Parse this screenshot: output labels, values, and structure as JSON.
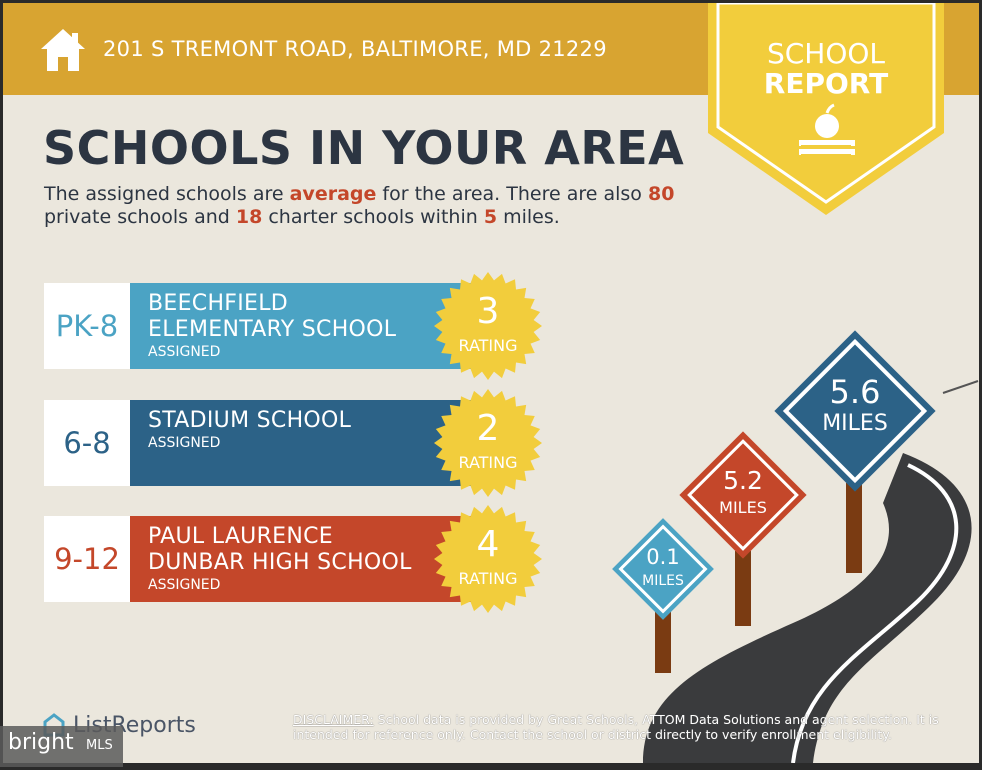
{
  "header": {
    "address": "201 S TREMONT ROAD, BALTIMORE, MD 21229"
  },
  "badge": {
    "line1": "SCHOOL",
    "line2": "REPORT"
  },
  "title": "SCHOOLS IN YOUR AREA",
  "summary": {
    "p1": "The assigned schools are ",
    "quality": "average",
    "p2": " for the area. There are also ",
    "private_count": "80",
    "p3": " private schools and ",
    "charter_count": "18",
    "p4": " charter schools within ",
    "radius": "5",
    "p5": " miles."
  },
  "schools": [
    {
      "grades": "PK-8",
      "name_line1": "BEECHFIELD",
      "name_line2": "ELEMENTARY SCHOOL",
      "status": "ASSIGNED",
      "rating": "3",
      "rating_label": "RATING",
      "color": "#4ba3c4"
    },
    {
      "grades": "6-8",
      "name_line1": "STADIUM SCHOOL",
      "name_line2": "",
      "status": "ASSIGNED",
      "rating": "2",
      "rating_label": "RATING",
      "color": "#2c6287"
    },
    {
      "grades": "9-12",
      "name_line1": "PAUL LAURENCE",
      "name_line2": "DUNBAR HIGH SCHOOL",
      "status": "ASSIGNED",
      "rating": "4",
      "rating_label": "RATING",
      "color": "#c4472a"
    }
  ],
  "distance_signs": [
    {
      "value": "0.1",
      "unit": "MILES",
      "color": "#4ba3c4"
    },
    {
      "value": "5.2",
      "unit": "MILES",
      "color": "#c4472a"
    },
    {
      "value": "5.6",
      "unit": "MILES",
      "color": "#2c6287"
    }
  ],
  "brand": {
    "listreports": "ListReports",
    "bright": "bright",
    "mls": "MLS"
  },
  "disclaimer": {
    "label": "DISCLAIMER:",
    "text": " School data is provided by Great Schools, ATTOM Data Solutions and agent selection. It is intended for reference only. Contact the school or district directly to verify enrollment eligibility."
  },
  "colors": {
    "header": "#d8a431",
    "badge": "#f2cd3c",
    "title": "#2c3542",
    "highlight": "#c4472a",
    "background": "#ebe7dd"
  }
}
